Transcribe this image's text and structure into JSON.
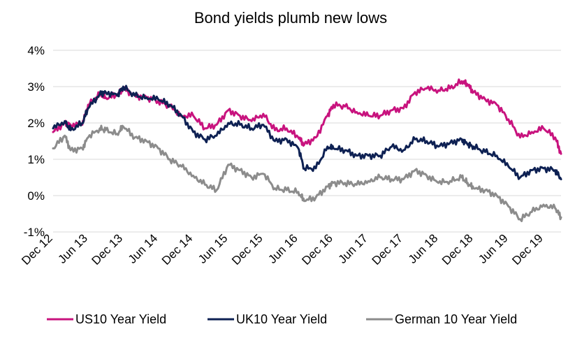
{
  "chart_data": {
    "type": "line",
    "title": "Bond yields plumb new lows",
    "xlabel": "",
    "ylabel": "",
    "ylim": [
      -1,
      4
    ],
    "y_ticks": [
      "-1%",
      "0%",
      "1%",
      "2%",
      "3%",
      "4%"
    ],
    "y_tick_values": [
      -1,
      0,
      1,
      2,
      3,
      4
    ],
    "x_range": [
      "Dec 12",
      "Mar 20"
    ],
    "x_ticks": [
      "Dec 12",
      "Jun 13",
      "Dec 13",
      "Jun 14",
      "Dec 14",
      "Jun 15",
      "Dec 15",
      "Jun 16",
      "Dec 16",
      "Jun 17",
      "Dec 17",
      "Jun 18",
      "Dec 18",
      "Jun 19",
      "Dec 19"
    ],
    "grid": "horizontal",
    "legend": "bottom",
    "series": [
      {
        "name": "US10 Year Yield",
        "color": "#c8137e",
        "x": [
          "Dec 12",
          "Feb 13",
          "Mar 13",
          "May 13",
          "Jun 13",
          "Aug 13",
          "Sep 13",
          "Nov 13",
          "Dec 13",
          "Feb 14",
          "Apr 14",
          "Jun 14",
          "Aug 14",
          "Oct 14",
          "Dec 14",
          "Feb 15",
          "Apr 15",
          "Jun 15",
          "Aug 15",
          "Oct 15",
          "Dec 15",
          "Feb 16",
          "Apr 16",
          "Jun 16",
          "Jul 16",
          "Sep 16",
          "Nov 16",
          "Dec 16",
          "Feb 17",
          "Apr 17",
          "Jun 17",
          "Aug 17",
          "Oct 17",
          "Dec 17",
          "Feb 18",
          "Apr 18",
          "Jun 18",
          "Aug 18",
          "Oct 18",
          "Nov 18",
          "Dec 18",
          "Feb 19",
          "Apr 19",
          "Jun 19",
          "Aug 19",
          "Oct 19",
          "Dec 19",
          "Feb 20",
          "Mar 20"
        ],
        "values": [
          1.75,
          2.0,
          1.95,
          1.95,
          2.5,
          2.8,
          2.7,
          2.75,
          2.95,
          2.75,
          2.7,
          2.6,
          2.45,
          2.2,
          2.2,
          1.85,
          1.95,
          2.35,
          2.2,
          2.05,
          2.25,
          1.8,
          1.85,
          1.6,
          1.4,
          1.6,
          2.2,
          2.5,
          2.45,
          2.3,
          2.2,
          2.2,
          2.35,
          2.4,
          2.85,
          2.95,
          2.9,
          2.95,
          3.15,
          3.05,
          2.85,
          2.65,
          2.5,
          2.1,
          1.6,
          1.75,
          1.85,
          1.6,
          1.15
        ]
      },
      {
        "name": "UK10 Year Yield",
        "color": "#0e2153",
        "x": [
          "Dec 12",
          "Feb 13",
          "Mar 13",
          "May 13",
          "Jun 13",
          "Aug 13",
          "Sep 13",
          "Nov 13",
          "Dec 13",
          "Feb 14",
          "Apr 14",
          "Jun 14",
          "Aug 14",
          "Oct 14",
          "Dec 14",
          "Feb 15",
          "Apr 15",
          "Jun 15",
          "Aug 15",
          "Oct 15",
          "Dec 15",
          "Feb 16",
          "Apr 16",
          "Jun 16",
          "Jul 16",
          "Sep 16",
          "Nov 16",
          "Dec 16",
          "Feb 17",
          "Apr 17",
          "Jun 17",
          "Aug 17",
          "Oct 17",
          "Dec 17",
          "Feb 18",
          "Apr 18",
          "Jun 18",
          "Aug 18",
          "Oct 18",
          "Nov 18",
          "Dec 18",
          "Feb 19",
          "Apr 19",
          "Jun 19",
          "Aug 19",
          "Oct 19",
          "Dec 19",
          "Feb 20",
          "Mar 20"
        ],
        "values": [
          1.85,
          2.05,
          1.8,
          2.0,
          2.4,
          2.8,
          2.85,
          2.75,
          3.0,
          2.75,
          2.7,
          2.65,
          2.5,
          2.2,
          1.75,
          1.55,
          1.65,
          2.0,
          1.95,
          1.85,
          1.95,
          1.5,
          1.55,
          1.3,
          0.75,
          0.75,
          1.35,
          1.3,
          1.25,
          1.1,
          1.1,
          1.1,
          1.35,
          1.25,
          1.55,
          1.5,
          1.35,
          1.45,
          1.55,
          1.4,
          1.35,
          1.2,
          1.1,
          0.8,
          0.5,
          0.7,
          0.75,
          0.7,
          0.45
        ]
      },
      {
        "name": "German 10 Year Yield",
        "color": "#8c8c8c",
        "x": [
          "Dec 12",
          "Feb 13",
          "Mar 13",
          "May 13",
          "Jun 13",
          "Aug 13",
          "Sep 13",
          "Nov 13",
          "Dec 13",
          "Feb 14",
          "Apr 14",
          "Jun 14",
          "Aug 14",
          "Oct 14",
          "Dec 14",
          "Feb 15",
          "Apr 15",
          "Jun 15",
          "Aug 15",
          "Oct 15",
          "Dec 15",
          "Feb 16",
          "Apr 16",
          "Jun 16",
          "Jul 16",
          "Sep 16",
          "Nov 16",
          "Dec 16",
          "Feb 17",
          "Apr 17",
          "Jun 17",
          "Aug 17",
          "Oct 17",
          "Dec 17",
          "Feb 18",
          "Apr 18",
          "Jun 18",
          "Aug 18",
          "Oct 18",
          "Nov 18",
          "Dec 18",
          "Feb 19",
          "Apr 19",
          "Jun 19",
          "Aug 19",
          "Oct 19",
          "Dec 19",
          "Feb 20",
          "Mar 20"
        ],
        "values": [
          1.3,
          1.65,
          1.25,
          1.3,
          1.6,
          1.85,
          1.8,
          1.7,
          1.9,
          1.6,
          1.5,
          1.3,
          1.0,
          0.8,
          0.55,
          0.3,
          0.15,
          0.85,
          0.7,
          0.5,
          0.6,
          0.2,
          0.15,
          0.1,
          -0.15,
          -0.05,
          0.25,
          0.35,
          0.35,
          0.3,
          0.4,
          0.5,
          0.45,
          0.45,
          0.7,
          0.55,
          0.35,
          0.4,
          0.5,
          0.35,
          0.2,
          0.15,
          0.0,
          -0.3,
          -0.65,
          -0.45,
          -0.25,
          -0.35,
          -0.6
        ]
      }
    ]
  }
}
